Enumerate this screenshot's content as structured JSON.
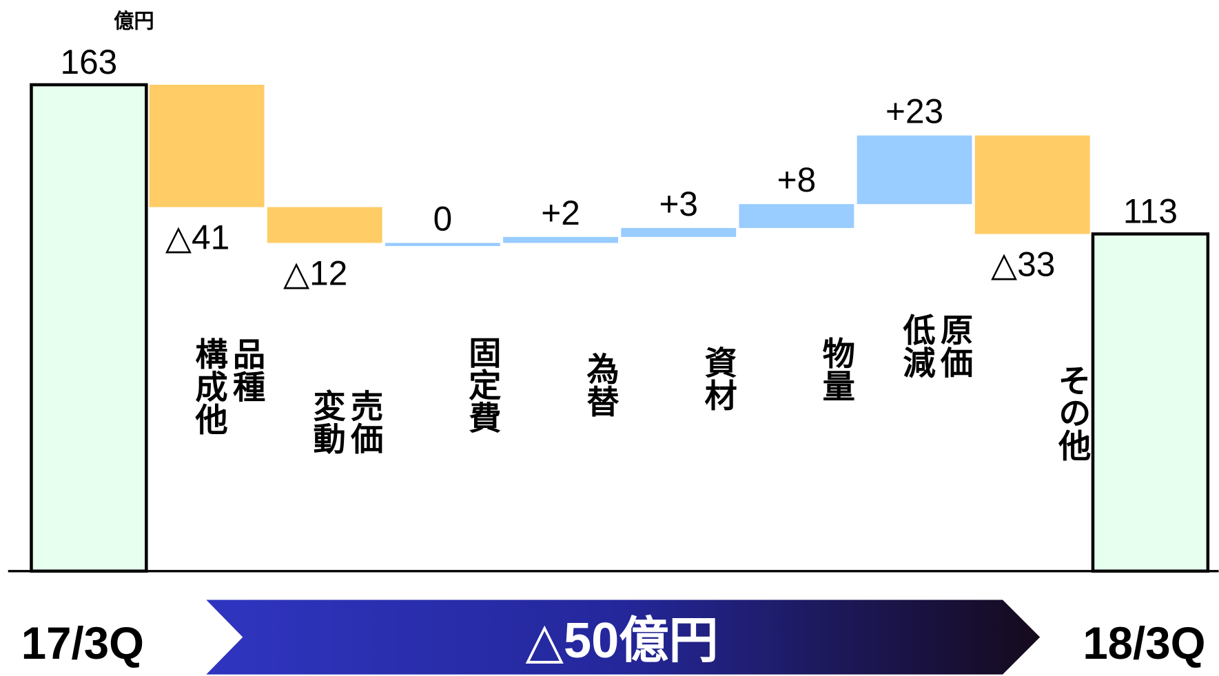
{
  "chart_data": {
    "type": "waterfall",
    "unit": "億円",
    "categories": [
      "17/3Q",
      "品種\n構成他",
      "売価\n変動",
      "固定費",
      "為替",
      "資材",
      "物量",
      "原価\n低減",
      "その他",
      "18/3Q"
    ],
    "values": [
      163,
      -41,
      -12,
      0,
      2,
      3,
      8,
      23,
      -33,
      113
    ],
    "value_labels": [
      "163",
      "△41",
      "△12",
      "0",
      "+2",
      "+3",
      "+8",
      "+23",
      "△33",
      "113"
    ],
    "total_indices": [
      0,
      9
    ],
    "colors": {
      "total": "#e6ffee",
      "increase": "#99ccff",
      "decrease": "#ffcc66"
    },
    "annotation": "△50億円"
  }
}
